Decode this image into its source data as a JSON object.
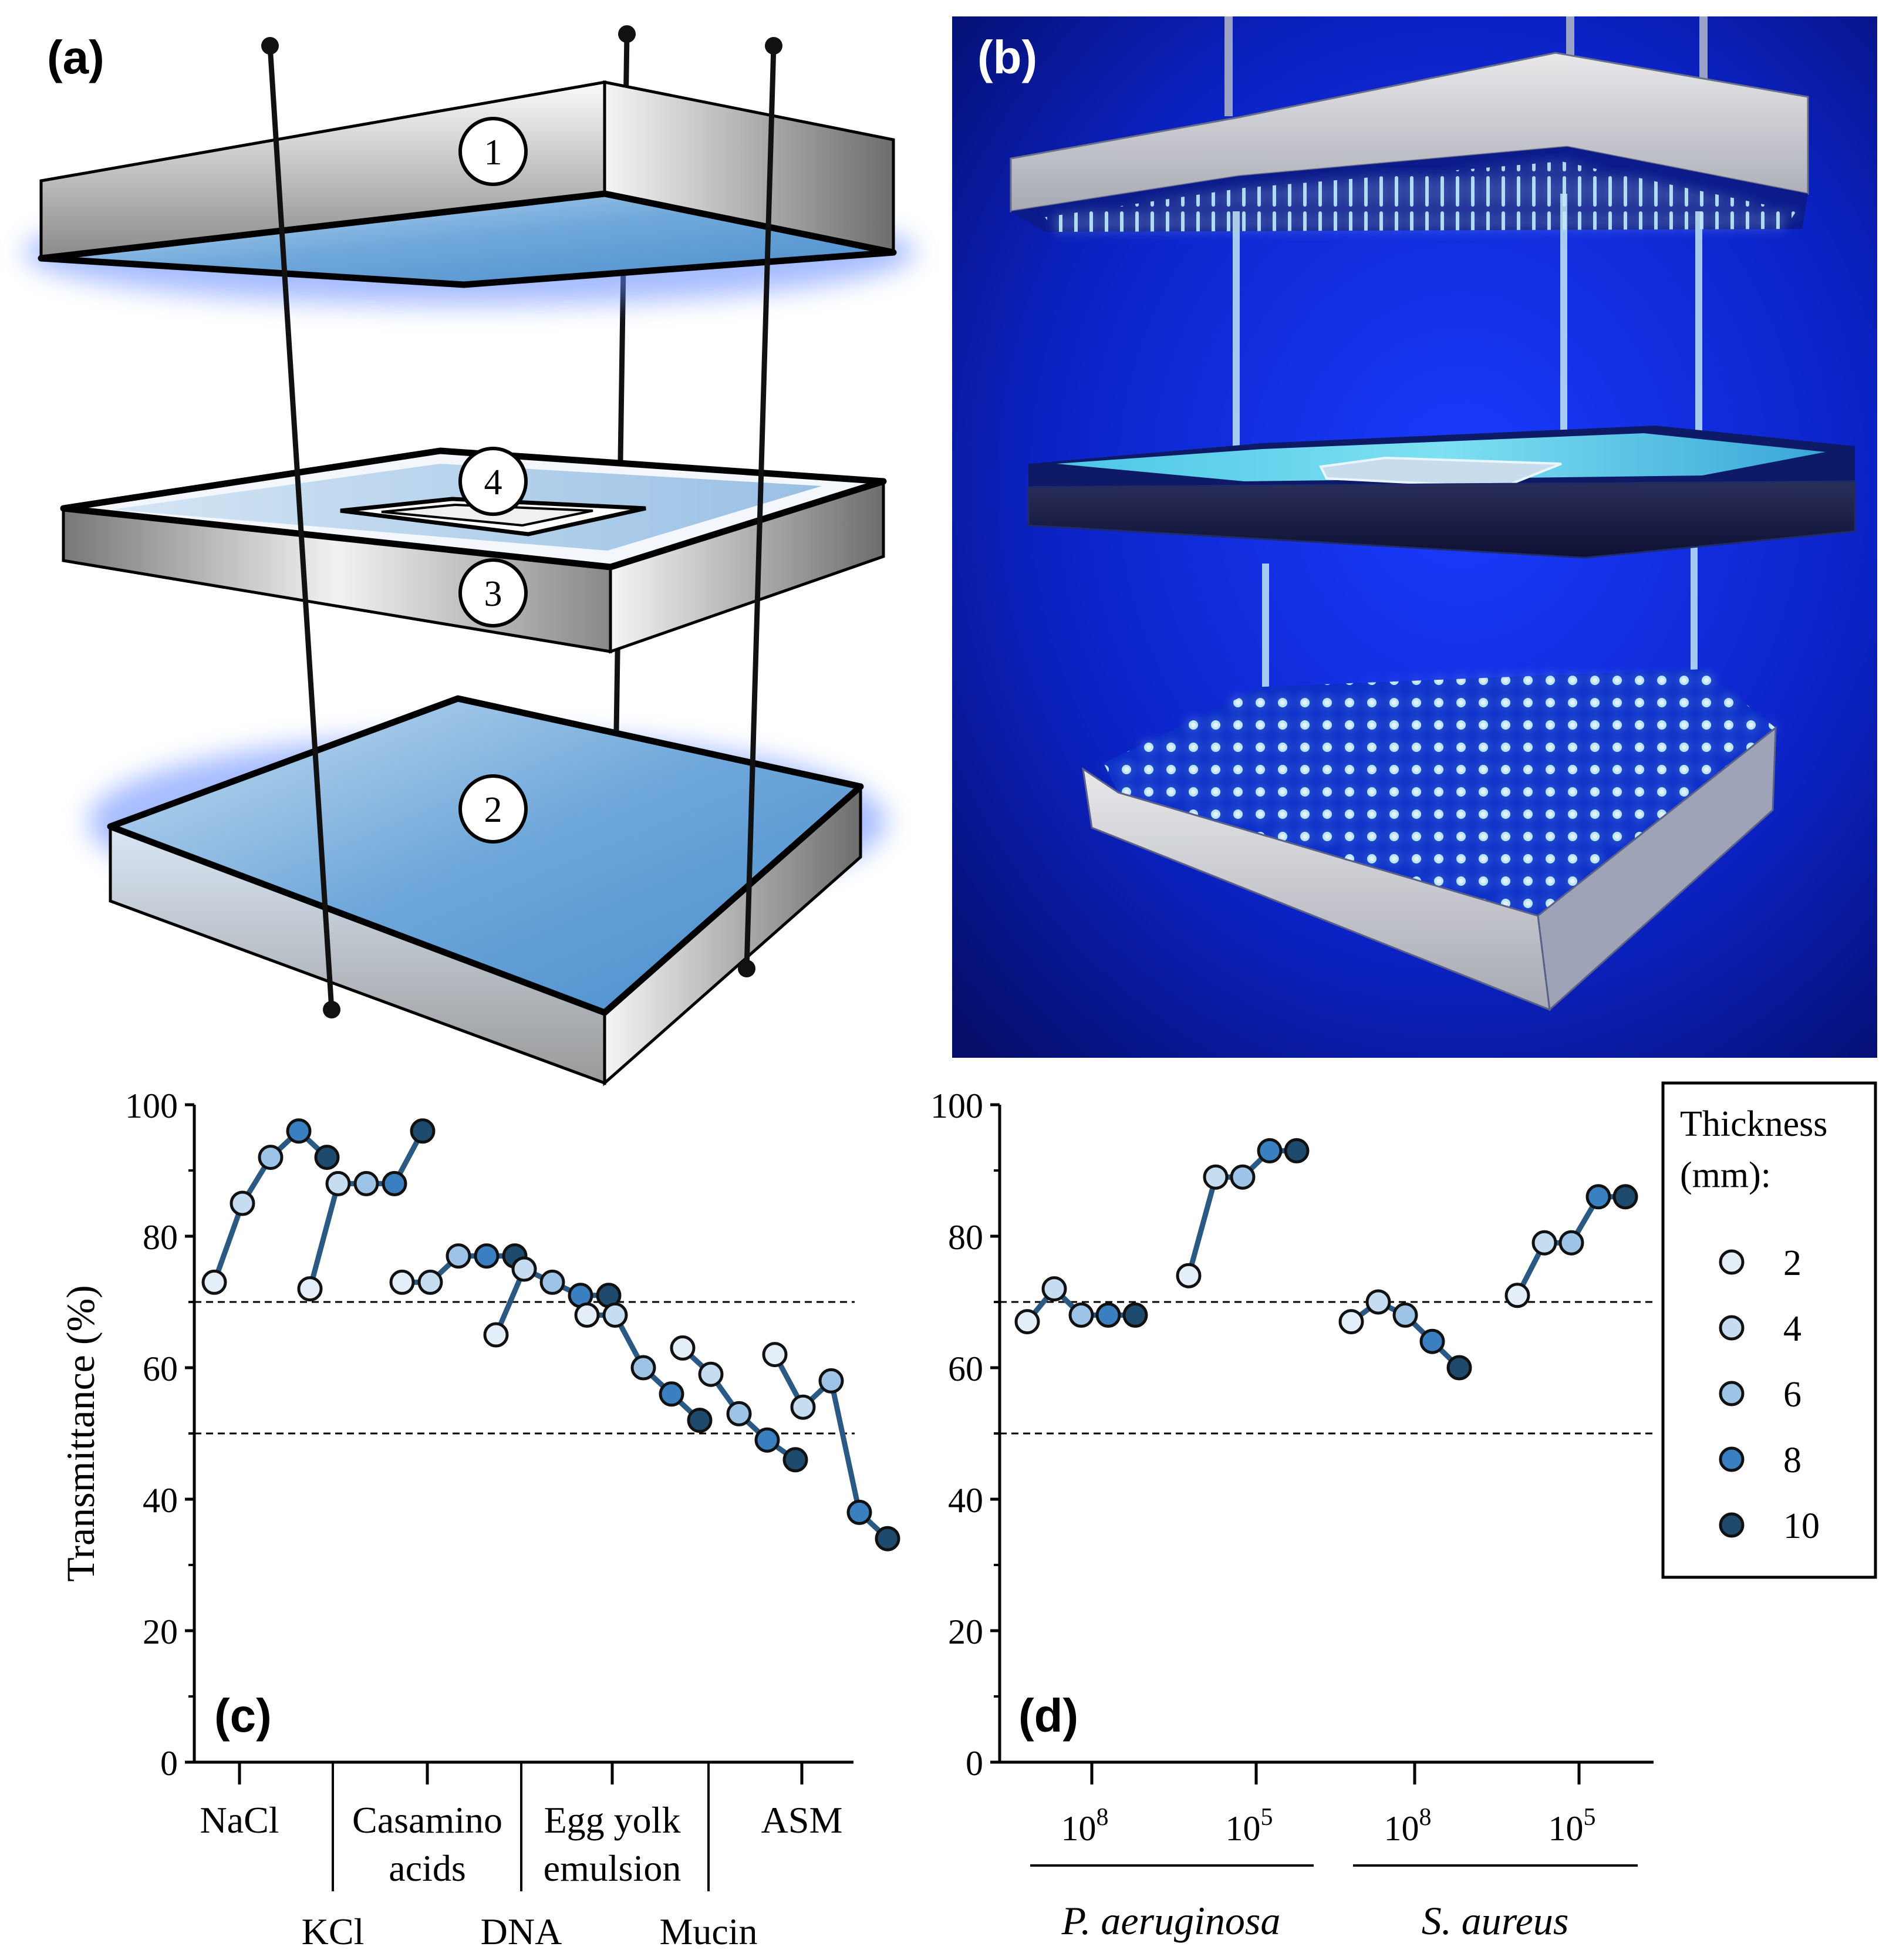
{
  "panels": {
    "a": {
      "label": "(a)",
      "badges": [
        "1",
        "2",
        "3",
        "4"
      ]
    },
    "b": {
      "label": "(b)"
    },
    "c": {
      "label": "(c)"
    },
    "d": {
      "label": "(d)"
    }
  },
  "colors": {
    "t2": "#e3eef8",
    "t4": "#c6dcf0",
    "t6": "#9dc3e6",
    "t8": "#3a7fc0",
    "t10": "#1e4a6e",
    "line": "#2a5a84",
    "panel_blue": "#5a9bd5",
    "photo_bg": "#0a1fb0"
  },
  "legend": {
    "title_line1": "Thickness",
    "title_line2": "(mm):",
    "entries": [
      {
        "label": "2",
        "key": "t2"
      },
      {
        "label": "4",
        "key": "t4"
      },
      {
        "label": "6",
        "key": "t6"
      },
      {
        "label": "8",
        "key": "t8"
      },
      {
        "label": "10",
        "key": "t10"
      }
    ]
  },
  "chart_data": [
    {
      "id": "c",
      "type": "line",
      "ylabel": "Transmittance (%)",
      "ylim": [
        0,
        100
      ],
      "yticks": [
        0,
        20,
        40,
        60,
        80,
        100
      ],
      "reference_lines": [
        70,
        50
      ],
      "groups_top": [
        "NaCl",
        "Casamino acids",
        "Egg yolk emulsion",
        "ASM"
      ],
      "groups_top_lines": [
        [
          "NaCl"
        ],
        [
          "Casamino",
          "acids"
        ],
        [
          "Egg yolk",
          "emulsion"
        ],
        [
          "ASM"
        ]
      ],
      "groups_bottom": [
        "KCl",
        "DNA",
        "Mucin"
      ],
      "series": [
        {
          "name": "NaCl",
          "values": [
            73,
            85,
            92,
            96,
            92
          ]
        },
        {
          "name": "KCl",
          "values": [
            72,
            88,
            88,
            88,
            96
          ]
        },
        {
          "name": "Casamino acids",
          "values": [
            73,
            73,
            77,
            77,
            77
          ]
        },
        {
          "name": "DNA",
          "values": [
            65,
            75,
            73,
            71,
            71
          ]
        },
        {
          "name": "Egg yolk emulsion",
          "values": [
            68,
            68,
            60,
            56,
            52
          ]
        },
        {
          "name": "Mucin",
          "values": [
            63,
            59,
            53,
            49,
            46
          ]
        },
        {
          "name": "ASM",
          "values": [
            62,
            54,
            58,
            38,
            34
          ]
        }
      ],
      "thickness_mm": [
        2,
        4,
        6,
        8,
        10
      ]
    },
    {
      "id": "d",
      "type": "line",
      "ylabel": "",
      "ylim": [
        0,
        100
      ],
      "yticks": [
        0,
        20,
        40,
        60,
        80,
        100
      ],
      "reference_lines": [
        70,
        50
      ],
      "inoculum_labels": [
        "10^8",
        "10^5",
        "10^8",
        "10^5"
      ],
      "inoculum_base": "10",
      "inoculum_exps": [
        "8",
        "5",
        "8",
        "5"
      ],
      "organisms": [
        "P. aeruginosa",
        "S. aureus"
      ],
      "series": [
        {
          "name": "P. aeruginosa 10^8",
          "values": [
            67,
            72,
            68,
            68,
            68
          ]
        },
        {
          "name": "P. aeruginosa 10^5",
          "values": [
            74,
            89,
            89,
            93,
            93
          ]
        },
        {
          "name": "S. aureus 10^8",
          "values": [
            67,
            70,
            68,
            64,
            60
          ]
        },
        {
          "name": "S. aureus 10^5",
          "values": [
            71,
            79,
            79,
            86,
            86
          ]
        }
      ],
      "thickness_mm": [
        2,
        4,
        6,
        8,
        10
      ]
    }
  ]
}
